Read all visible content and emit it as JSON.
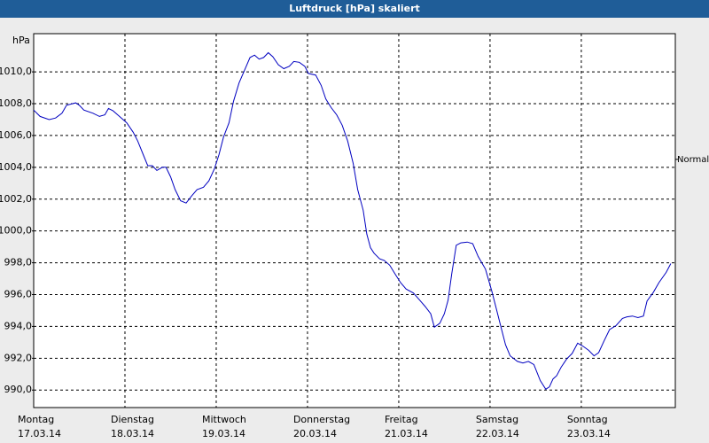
{
  "chart_data": {
    "type": "line",
    "title": "Luftdruck [hPa] skaliert",
    "y_unit": "hPa",
    "annotation": {
      "text": "Normal",
      "y": 1004.5
    },
    "x": [
      0,
      0.07,
      0.17,
      0.24,
      0.31,
      0.36,
      0.46,
      0.5,
      0.55,
      0.65,
      0.72,
      0.78,
      0.82,
      0.87,
      0.94,
      1.02,
      1.09,
      1.14,
      1.2,
      1.25,
      1.3,
      1.35,
      1.41,
      1.45,
      1.5,
      1.55,
      1.61,
      1.67,
      1.73,
      1.79,
      1.86,
      1.92,
      1.98,
      2.03,
      2.08,
      2.14,
      2.19,
      2.25,
      2.31,
      2.37,
      2.42,
      2.47,
      2.52,
      2.57,
      2.62,
      2.68,
      2.74,
      2.8,
      2.85,
      2.91,
      2.97,
      3.01,
      3.09,
      3.15,
      3.2,
      3.26,
      3.32,
      3.38,
      3.44,
      3.5,
      3.55,
      3.61,
      3.65,
      3.69,
      3.73,
      3.79,
      3.84,
      3.9,
      3.96,
      4.02,
      4.08,
      4.16,
      4.23,
      4.29,
      4.35,
      4.39,
      4.45,
      4.5,
      4.54,
      4.58,
      4.63,
      4.68,
      4.75,
      4.81,
      4.87,
      4.95,
      5.02,
      5.07,
      5.12,
      5.17,
      5.22,
      5.3,
      5.36,
      5.42,
      5.48,
      5.55,
      5.61,
      5.65,
      5.69,
      5.73,
      5.78,
      5.84,
      5.9,
      5.96,
      6.02,
      6.08,
      6.14,
      6.19,
      6.25,
      6.31,
      6.38,
      6.45,
      6.5,
      6.56,
      6.62,
      6.68,
      6.72,
      6.79,
      6.85,
      6.93,
      6.98
    ],
    "series": [
      {
        "color": "#0000c0",
        "values": [
          1007.6,
          1007.2,
          1007.0,
          1007.1,
          1007.4,
          1007.9,
          1008.05,
          1007.9,
          1007.6,
          1007.4,
          1007.2,
          1007.3,
          1007.7,
          1007.55,
          1007.2,
          1006.8,
          1006.2,
          1005.65,
          1004.8,
          1004.1,
          1004.1,
          1003.8,
          1004.0,
          1004.0,
          1003.4,
          1002.6,
          1001.9,
          1001.75,
          1002.2,
          1002.6,
          1002.75,
          1003.15,
          1003.9,
          1004.8,
          1005.9,
          1006.8,
          1008.15,
          1009.3,
          1010.1,
          1010.9,
          1011.05,
          1010.8,
          1010.9,
          1011.2,
          1010.95,
          1010.45,
          1010.2,
          1010.35,
          1010.65,
          1010.6,
          1010.35,
          1009.9,
          1009.8,
          1009.15,
          1008.3,
          1007.75,
          1007.3,
          1006.65,
          1005.65,
          1004.25,
          1002.6,
          1001.3,
          999.8,
          998.95,
          998.6,
          998.25,
          998.15,
          997.85,
          997.3,
          996.75,
          996.35,
          996.1,
          995.65,
          995.25,
          994.8,
          993.95,
          994.2,
          994.8,
          995.65,
          997.3,
          999.1,
          999.25,
          999.3,
          999.2,
          998.4,
          997.6,
          996.2,
          995.1,
          993.95,
          992.85,
          992.15,
          991.8,
          991.7,
          991.8,
          991.6,
          990.6,
          990.05,
          990.2,
          990.7,
          990.9,
          991.45,
          991.95,
          992.3,
          992.95,
          992.75,
          992.5,
          992.15,
          992.35,
          993.1,
          993.8,
          994.05,
          994.5,
          994.6,
          994.65,
          994.55,
          994.65,
          995.6,
          996.15,
          996.75,
          997.4,
          997.95
        ]
      }
    ],
    "xlim": [
      0,
      7.03
    ],
    "xticks": [
      {
        "value": 0,
        "label": "Montag",
        "date": "17.03.14"
      },
      {
        "value": 1,
        "label": "Dienstag",
        "date": "18.03.14"
      },
      {
        "value": 2,
        "label": "Mittwoch",
        "date": "19.03.14"
      },
      {
        "value": 3,
        "label": "Donnerstag",
        "date": "20.03.14"
      },
      {
        "value": 4,
        "label": "Freitag",
        "date": "21.03.14"
      },
      {
        "value": 5,
        "label": "Samstag",
        "date": "22.03.14"
      },
      {
        "value": 6,
        "label": "Sonntag",
        "date": "23.03.14"
      }
    ],
    "ylim": [
      988.9,
      1012.4
    ],
    "yticks": [
      {
        "value": 990,
        "label": "990,0"
      },
      {
        "value": 992,
        "label": "992,0"
      },
      {
        "value": 994,
        "label": "994,0"
      },
      {
        "value": 996,
        "label": "996,0"
      },
      {
        "value": 998,
        "label": "998,0"
      },
      {
        "value": 1000,
        "label": "1000,0"
      },
      {
        "value": 1002,
        "label": "1002,0"
      },
      {
        "value": 1004,
        "label": "1004,0"
      },
      {
        "value": 1006,
        "label": "1006,0"
      },
      {
        "value": 1008,
        "label": "1008,0"
      },
      {
        "value": 1010,
        "label": "1010,0"
      }
    ],
    "grid": true
  }
}
